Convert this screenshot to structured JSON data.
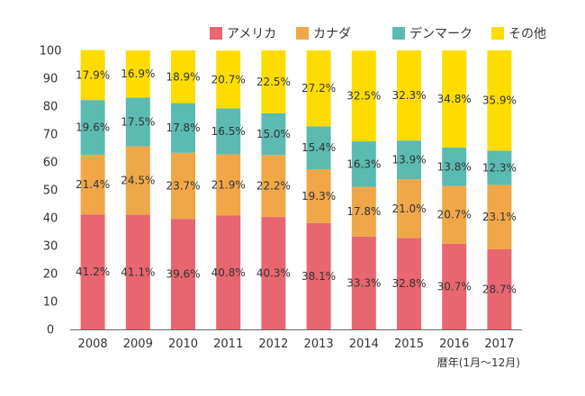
{
  "chart_data": {
    "type": "bar",
    "stacked": true,
    "categories": [
      "2008",
      "2009",
      "2010",
      "2011",
      "2012",
      "2013",
      "2014",
      "2015",
      "2016",
      "2017"
    ],
    "series": [
      {
        "name": "アメリカ",
        "color": "#e8666f",
        "values": [
          41.2,
          41.1,
          39.6,
          40.8,
          40.3,
          38.1,
          33.3,
          32.8,
          30.7,
          28.7
        ],
        "labels": [
          "41.2%",
          "41.1%",
          "39.6%",
          "40.8%",
          "40.3%",
          "38.1%",
          "33.3%",
          "32.8%",
          "30.7%",
          "28.7%"
        ]
      },
      {
        "name": "カナダ",
        "color": "#f0a748",
        "values": [
          21.4,
          24.5,
          23.7,
          21.9,
          22.2,
          19.3,
          17.8,
          21.0,
          20.7,
          23.1
        ],
        "labels": [
          "21.4%",
          "24.5%",
          "23.7%",
          "21.9%",
          "22.2%",
          "19.3%",
          "17.8%",
          "21.0%",
          "20.7%",
          "23.1%"
        ]
      },
      {
        "name": "デンマーク",
        "color": "#5bbbb0",
        "values": [
          19.6,
          17.5,
          17.8,
          16.5,
          15.0,
          15.4,
          16.3,
          13.9,
          13.8,
          12.3
        ],
        "labels": [
          "19.6%",
          "17.5%",
          "17.8%",
          "16.5%",
          "15.0%",
          "15.4%",
          "16.3%",
          "13.9%",
          "13.8%",
          "12.3%"
        ]
      },
      {
        "name": "その他",
        "color": "#ffdc00",
        "values": [
          17.9,
          16.9,
          18.9,
          20.7,
          22.5,
          27.2,
          32.5,
          32.3,
          34.8,
          35.9
        ],
        "labels": [
          "17.9%",
          "16.9%",
          "18.9%",
          "20.7%",
          "22.5%",
          "27.2%",
          "32.5%",
          "32.3%",
          "34.8%",
          "35.9%"
        ]
      }
    ],
    "ylim": [
      0,
      100
    ],
    "yticks": [
      0,
      10,
      20,
      30,
      40,
      50,
      60,
      70,
      80,
      90,
      100
    ],
    "xlabel_note": "暦年(1月～12月)",
    "legend_position": "top-right",
    "grid": false
  }
}
